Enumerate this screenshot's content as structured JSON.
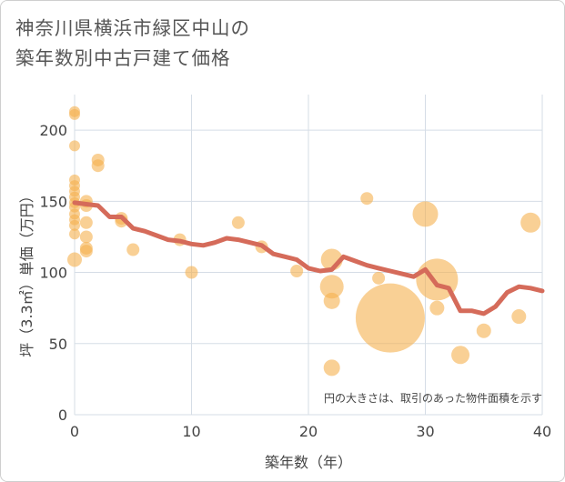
{
  "title_lines": [
    "神奈川県横浜市緑区中山の",
    "築年数別中古戸建て価格"
  ],
  "chart_data": {
    "type": "scatter",
    "xlabel": "築年数（年）",
    "ylabel": "坪（3.3㎡）単価（万円）",
    "xlim": [
      0,
      40
    ],
    "ylim": [
      0,
      225
    ],
    "xticks": [
      "0",
      "10",
      "20",
      "30",
      "40"
    ],
    "yticks": [
      "0",
      "50",
      "100",
      "150",
      "200"
    ],
    "grid": true,
    "note": "円の大きさは、取引のあった物件面積を示す",
    "colors": {
      "bubble": "#f5b14e",
      "line": "#d56b5a"
    },
    "points": [
      {
        "x": 0,
        "y": 213,
        "s": 6
      },
      {
        "x": 0,
        "y": 211,
        "s": 6
      },
      {
        "x": 0,
        "y": 189,
        "s": 6
      },
      {
        "x": 0,
        "y": 165,
        "s": 6
      },
      {
        "x": 0,
        "y": 161,
        "s": 6
      },
      {
        "x": 0,
        "y": 157,
        "s": 6
      },
      {
        "x": 0,
        "y": 153,
        "s": 6
      },
      {
        "x": 0,
        "y": 149,
        "s": 6
      },
      {
        "x": 0,
        "y": 146,
        "s": 6
      },
      {
        "x": 0,
        "y": 141,
        "s": 6
      },
      {
        "x": 0,
        "y": 137,
        "s": 6
      },
      {
        "x": 0,
        "y": 133,
        "s": 6
      },
      {
        "x": 0,
        "y": 127,
        "s": 6
      },
      {
        "x": 0,
        "y": 109,
        "s": 8
      },
      {
        "x": 1,
        "y": 150,
        "s": 7
      },
      {
        "x": 1,
        "y": 147,
        "s": 7
      },
      {
        "x": 1,
        "y": 135,
        "s": 7
      },
      {
        "x": 1,
        "y": 125,
        "s": 7
      },
      {
        "x": 1,
        "y": 117,
        "s": 7
      },
      {
        "x": 1,
        "y": 115,
        "s": 7
      },
      {
        "x": 2,
        "y": 179,
        "s": 7
      },
      {
        "x": 2,
        "y": 175,
        "s": 7
      },
      {
        "x": 4,
        "y": 138,
        "s": 7
      },
      {
        "x": 4,
        "y": 136,
        "s": 7
      },
      {
        "x": 5,
        "y": 116,
        "s": 7
      },
      {
        "x": 9,
        "y": 123,
        "s": 7
      },
      {
        "x": 10,
        "y": 100,
        "s": 7
      },
      {
        "x": 14,
        "y": 135,
        "s": 7
      },
      {
        "x": 16,
        "y": 118,
        "s": 7
      },
      {
        "x": 19,
        "y": 101,
        "s": 7
      },
      {
        "x": 22,
        "y": 109,
        "s": 12
      },
      {
        "x": 22,
        "y": 90,
        "s": 13
      },
      {
        "x": 22,
        "y": 80,
        "s": 9
      },
      {
        "x": 22,
        "y": 33,
        "s": 9
      },
      {
        "x": 25,
        "y": 152,
        "s": 7
      },
      {
        "x": 26,
        "y": 96,
        "s": 7
      },
      {
        "x": 27,
        "y": 68,
        "s": 38
      },
      {
        "x": 30,
        "y": 141,
        "s": 14
      },
      {
        "x": 31,
        "y": 95,
        "s": 23
      },
      {
        "x": 31,
        "y": 75,
        "s": 8
      },
      {
        "x": 33,
        "y": 42,
        "s": 10
      },
      {
        "x": 35,
        "y": 59,
        "s": 8
      },
      {
        "x": 38,
        "y": 69,
        "s": 8
      },
      {
        "x": 39,
        "y": 135,
        "s": 11
      }
    ],
    "trend": [
      {
        "x": 0,
        "y": 149
      },
      {
        "x": 1,
        "y": 148
      },
      {
        "x": 2,
        "y": 147
      },
      {
        "x": 3,
        "y": 139
      },
      {
        "x": 4,
        "y": 139
      },
      {
        "x": 5,
        "y": 131
      },
      {
        "x": 6,
        "y": 129
      },
      {
        "x": 7,
        "y": 126
      },
      {
        "x": 8,
        "y": 123
      },
      {
        "x": 9,
        "y": 122
      },
      {
        "x": 10,
        "y": 120
      },
      {
        "x": 11,
        "y": 119
      },
      {
        "x": 12,
        "y": 121
      },
      {
        "x": 13,
        "y": 124
      },
      {
        "x": 14,
        "y": 123
      },
      {
        "x": 15,
        "y": 121
      },
      {
        "x": 16,
        "y": 119
      },
      {
        "x": 17,
        "y": 113
      },
      {
        "x": 18,
        "y": 111
      },
      {
        "x": 19,
        "y": 109
      },
      {
        "x": 20,
        "y": 103
      },
      {
        "x": 21,
        "y": 101
      },
      {
        "x": 22,
        "y": 102
      },
      {
        "x": 23,
        "y": 111
      },
      {
        "x": 24,
        "y": 108
      },
      {
        "x": 25,
        "y": 105
      },
      {
        "x": 26,
        "y": 103
      },
      {
        "x": 27,
        "y": 101
      },
      {
        "x": 28,
        "y": 99
      },
      {
        "x": 29,
        "y": 97
      },
      {
        "x": 30,
        "y": 102
      },
      {
        "x": 31,
        "y": 91
      },
      {
        "x": 32,
        "y": 89
      },
      {
        "x": 33,
        "y": 73
      },
      {
        "x": 34,
        "y": 73
      },
      {
        "x": 35,
        "y": 71
      },
      {
        "x": 36,
        "y": 76
      },
      {
        "x": 37,
        "y": 86
      },
      {
        "x": 38,
        "y": 90
      },
      {
        "x": 39,
        "y": 89
      },
      {
        "x": 40,
        "y": 87
      }
    ]
  }
}
